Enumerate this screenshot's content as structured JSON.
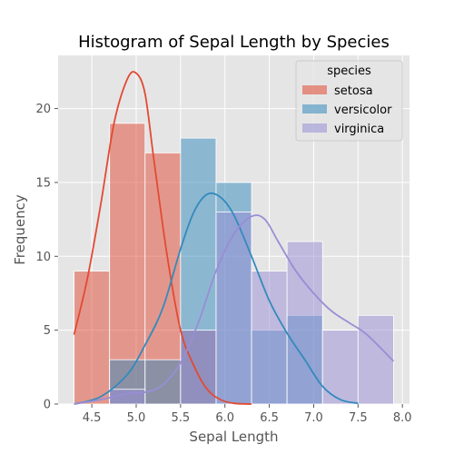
{
  "chart_data": {
    "type": "bar",
    "title": "Histogram of Sepal Length by Species",
    "xlabel": "Sepal Length",
    "ylabel": "Frequency",
    "xlim": [
      4.12,
      8.08
    ],
    "ylim": [
      0,
      23.6
    ],
    "xticks": [
      4.5,
      5.0,
      5.5,
      6.0,
      6.5,
      7.0,
      7.5,
      8.0
    ],
    "xtick_labels": [
      "4.5",
      "5.0",
      "5.5",
      "6.0",
      "6.5",
      "7.0",
      "7.5",
      "8.0"
    ],
    "yticks": [
      0,
      5,
      10,
      15,
      20
    ],
    "ytick_labels": [
      "0",
      "5",
      "10",
      "15",
      "20"
    ],
    "grid": true,
    "legend": {
      "title": "species",
      "placement": "top-right"
    },
    "bin_edges": [
      4.3,
      4.7,
      5.1,
      5.5,
      5.9,
      6.3,
      6.7,
      7.1,
      7.5,
      7.9
    ],
    "series": [
      {
        "name": "setosa",
        "color": "#E24A33",
        "counts": [
          9,
          19,
          17,
          5,
          0,
          0,
          0,
          0,
          0
        ],
        "kde_x": [
          4.3,
          4.45,
          4.6,
          4.75,
          4.9,
          5.0,
          5.1,
          5.2,
          5.35,
          5.5,
          5.65,
          5.8,
          5.95,
          6.1,
          6.3
        ],
        "kde_y": [
          4.7,
          8.5,
          13.5,
          19.0,
          22.0,
          22.4,
          21.0,
          16.5,
          10.0,
          5.0,
          2.6,
          1.0,
          0.3,
          0.05,
          0.0
        ]
      },
      {
        "name": "versicolor",
        "color": "#348ABD",
        "counts": [
          0,
          3,
          3,
          18,
          15,
          5,
          6,
          0,
          0
        ],
        "kde_x": [
          4.3,
          4.6,
          4.9,
          5.1,
          5.3,
          5.5,
          5.65,
          5.8,
          5.95,
          6.1,
          6.3,
          6.5,
          6.7,
          6.9,
          7.1,
          7.3,
          7.5
        ],
        "kde_y": [
          0.0,
          0.5,
          2.0,
          4.0,
          6.5,
          10.5,
          13.0,
          14.2,
          14.0,
          12.8,
          10.0,
          7.0,
          4.8,
          3.0,
          1.2,
          0.3,
          0.05
        ]
      },
      {
        "name": "virginica",
        "color": "#988ED5",
        "counts": [
          0,
          1,
          0,
          5,
          13,
          9,
          11,
          5,
          6
        ],
        "kde_x": [
          4.3,
          4.6,
          4.9,
          5.1,
          5.3,
          5.5,
          5.7,
          5.9,
          6.1,
          6.3,
          6.45,
          6.6,
          6.8,
          7.0,
          7.2,
          7.4,
          7.6,
          7.9
        ],
        "kde_y": [
          0.0,
          0.3,
          0.7,
          0.8,
          1.3,
          2.8,
          5.5,
          9.0,
          11.5,
          12.7,
          12.5,
          11.0,
          9.0,
          7.5,
          6.3,
          5.5,
          4.7,
          2.9
        ]
      }
    ]
  }
}
